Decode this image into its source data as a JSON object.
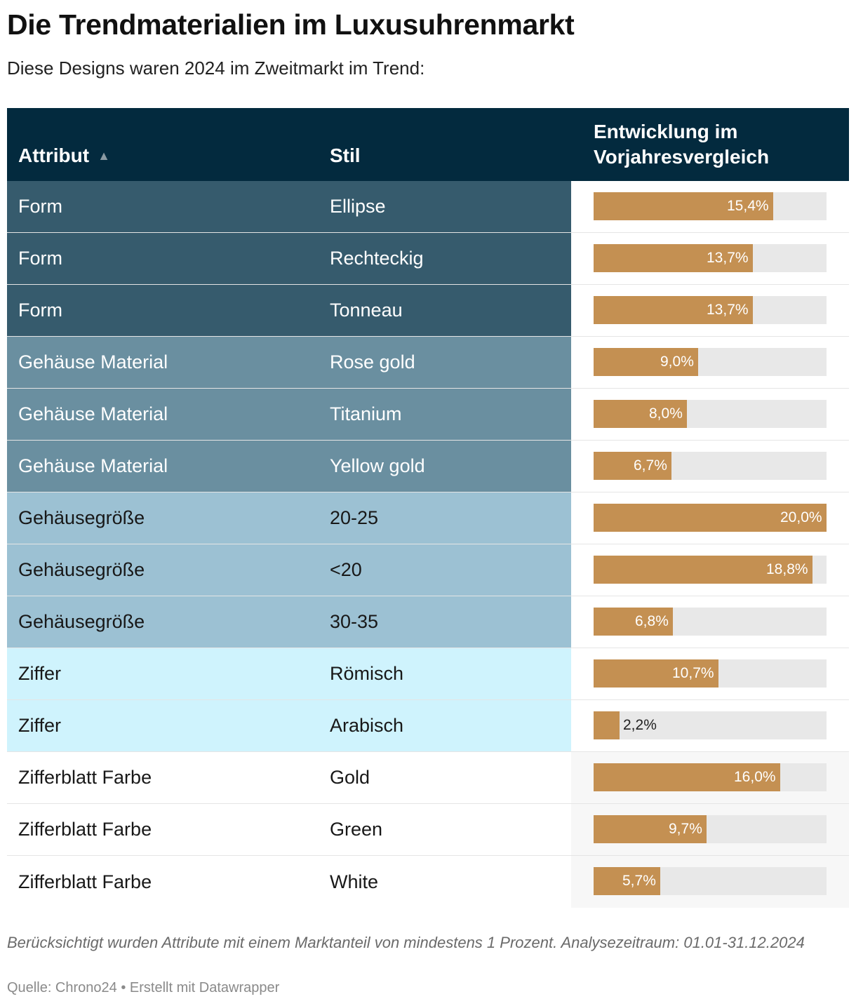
{
  "title": "Die Trendmaterialien im Luxusuhrenmarkt",
  "subtitle": "Diese Designs waren 2024 im Zweitmarkt im Trend:",
  "note": "Berücksichtigt wurden Attribute mit einem Marktanteil von mindestens 1 Prozent. Analysezeitraum: 01.01-31.12.2024",
  "source": "Quelle: Chrono24 • Erstellt mit Datawrapper",
  "colors": {
    "header": "#032a3e",
    "bar": "#c49052",
    "track": "#e8e8e8",
    "group_form": "#365b6d",
    "group_material": "#6a8fa0",
    "group_groesse": "#9cc1d3",
    "group_ziffer": "#cff3fd",
    "group_zifferblatt": "#ffffff"
  },
  "chart_data": {
    "type": "table",
    "columns": [
      "Attribut",
      "Stil",
      "Entwicklung im Vorjahresvergleich"
    ],
    "sort_icon": "sort-ascending-icon",
    "max_value": 20.0,
    "rows": [
      {
        "attribut": "Form",
        "stil": "Ellipse",
        "value": 15.4,
        "label": "15,4%",
        "bg": "#365b6d",
        "text_color": "#ffffff"
      },
      {
        "attribut": "Form",
        "stil": "Rechteckig",
        "value": 13.7,
        "label": "13,7%",
        "bg": "#365b6d",
        "text_color": "#ffffff"
      },
      {
        "attribut": "Form",
        "stil": "Tonneau",
        "value": 13.7,
        "label": "13,7%",
        "bg": "#365b6d",
        "text_color": "#ffffff"
      },
      {
        "attribut": "Gehäuse Material",
        "stil": "Rose gold",
        "value": 9.0,
        "label": "9,0%",
        "bg": "#6a8fa0",
        "text_color": "#ffffff"
      },
      {
        "attribut": "Gehäuse Material",
        "stil": "Titanium",
        "value": 8.0,
        "label": "8,0%",
        "bg": "#6a8fa0",
        "text_color": "#ffffff"
      },
      {
        "attribut": "Gehäuse Material",
        "stil": "Yellow gold",
        "value": 6.7,
        "label": "6,7%",
        "bg": "#6a8fa0",
        "text_color": "#ffffff"
      },
      {
        "attribut": "Gehäusegröße",
        "stil": "20-25",
        "value": 20.0,
        "label": "20,0%",
        "bg": "#9cc1d3",
        "text_color": "#181818"
      },
      {
        "attribut": "Gehäusegröße",
        "stil": "<20",
        "value": 18.8,
        "label": "18,8%",
        "bg": "#9cc1d3",
        "text_color": "#181818"
      },
      {
        "attribut": "Gehäusegröße",
        "stil": "30-35",
        "value": 6.8,
        "label": "6,8%",
        "bg": "#9cc1d3",
        "text_color": "#181818"
      },
      {
        "attribut": "Ziffer",
        "stil": "Römisch",
        "value": 10.7,
        "label": "10,7%",
        "bg": "#cff3fd",
        "text_color": "#181818"
      },
      {
        "attribut": "Ziffer",
        "stil": "Arabisch",
        "value": 2.2,
        "label": "2,2%",
        "bg": "#cff3fd",
        "text_color": "#181818"
      },
      {
        "attribut": "Zifferblatt Farbe",
        "stil": "Gold",
        "value": 16.0,
        "label": "16,0%",
        "bg": "#ffffff",
        "text_color": "#181818"
      },
      {
        "attribut": "Zifferblatt Farbe",
        "stil": "Green",
        "value": 9.7,
        "label": "9,7%",
        "bg": "#ffffff",
        "text_color": "#181818"
      },
      {
        "attribut": "Zifferblatt Farbe",
        "stil": "White",
        "value": 5.7,
        "label": "5,7%",
        "bg": "#ffffff",
        "text_color": "#181818"
      }
    ]
  }
}
